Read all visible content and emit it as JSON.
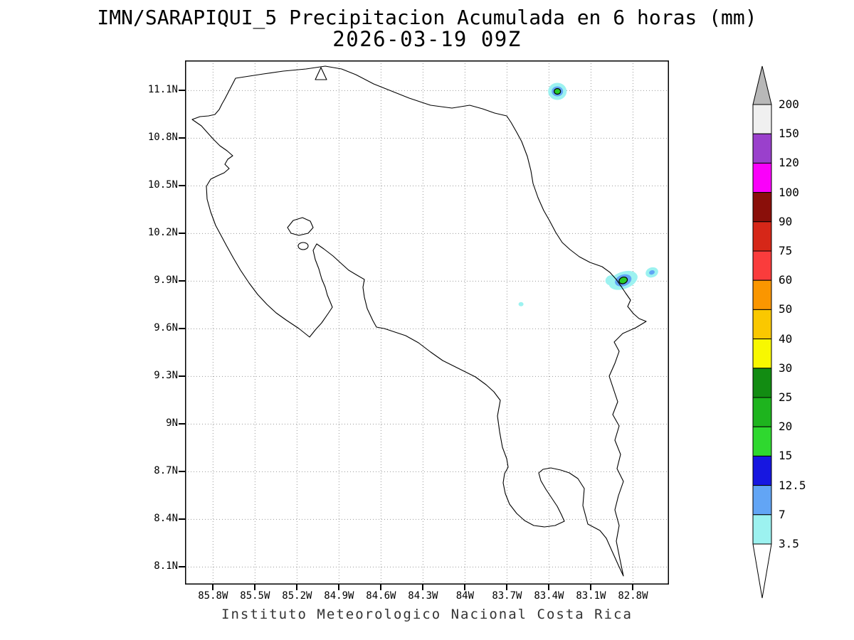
{
  "title": {
    "line1": "IMN/SARAPIQUI_5 Precipitacion Acumulada en 6 horas (mm)",
    "line2": "2026-03-19 09Z"
  },
  "footer": "Instituto Meteorologico Nacional Costa Rica",
  "map": {
    "y_ticks": [
      "11.1N",
      "10.8N",
      "10.5N",
      "10.2N",
      "9.9N",
      "9.6N",
      "9.3N",
      "9N",
      "8.7N",
      "8.4N",
      "8.1N"
    ],
    "x_ticks": [
      "85.8W",
      "85.5W",
      "85.2W",
      "84.9W",
      "84.6W",
      "84.3W",
      "84W",
      "83.7W",
      "83.4W",
      "83.1W",
      "82.8W"
    ]
  },
  "colorbar": {
    "labels_top_to_bottom": [
      "200",
      "150",
      "120",
      "100",
      "90",
      "75",
      "60",
      "50",
      "40",
      "30",
      "25",
      "20",
      "15",
      "12.5",
      "7",
      "3.5"
    ],
    "cell_colors_top_to_bottom": [
      "#f0f0f0",
      "#9a40cc",
      "#fa00fa",
      "#8a0f0a",
      "#d62718",
      "#fa3c3c",
      "#fa9600",
      "#fac800",
      "#f8f800",
      "#128c12",
      "#1eb41e",
      "#2fd82f",
      "#1717e0",
      "#62a5f5",
      "#9cf2f0"
    ],
    "top_arrow_color": "#b8b8b8",
    "bottom_arrow_color": "#ffffff"
  },
  "chart_data": {
    "type": "heatmap",
    "title": "IMN/SARAPIQUI_5 Precipitacion Acumulada en 6 horas (mm)",
    "subtitle": "2026-03-19 09Z",
    "units": "mm",
    "region": "Costa Rica",
    "lat_ticks": [
      "11.1N",
      "10.8N",
      "10.5N",
      "10.2N",
      "9.9N",
      "9.6N",
      "9.3N",
      "9N",
      "8.7N",
      "8.4N",
      "8.1N"
    ],
    "lon_ticks": [
      "85.8W",
      "85.5W",
      "85.2W",
      "84.9W",
      "84.6W",
      "84.3W",
      "84W",
      "83.7W",
      "83.4W",
      "83.1W",
      "82.8W"
    ],
    "scale_levels_mm": [
      3.5,
      7,
      12.5,
      15,
      20,
      25,
      30,
      40,
      50,
      60,
      75,
      90,
      100,
      120,
      150,
      200
    ],
    "scale_colors_low_to_high": [
      "#9cf2f0",
      "#62a5f5",
      "#1717e0",
      "#2fd82f",
      "#1eb41e",
      "#128c12",
      "#f8f800",
      "#fac800",
      "#fa9600",
      "#fa3c3c",
      "#d62718",
      "#8a0f0a",
      "#fa00fa",
      "#9a40cc",
      "#f0f0f0"
    ],
    "under_color": "#ffffff",
    "over_color": "#b8b8b8",
    "grid": true,
    "precip_cells": [
      {
        "lon_w": 83.34,
        "lat_n": 11.095,
        "max_mm": 20,
        "rotate": 0,
        "rings": [
          {
            "color": "#9cf2f0",
            "rx": 13,
            "ry": 12
          },
          {
            "color": "#62a5f5",
            "rx": 8,
            "ry": 7
          },
          {
            "color": "#28cc28",
            "rx": 4.5,
            "ry": 4,
            "stroke": "#000"
          }
        ]
      },
      {
        "lon_w": 82.87,
        "lat_n": 9.905,
        "max_mm": 25,
        "rotate": -20,
        "rings": [
          {
            "color": "#9cf2f0",
            "rx": 21,
            "ry": 12
          },
          {
            "color": "#9cf2f0",
            "rx": 8,
            "ry": 7,
            "dx": -16,
            "dy": -6
          },
          {
            "color": "#62a5f5",
            "rx": 12,
            "ry": 8
          },
          {
            "color": "#28cc28",
            "rx": 6,
            "ry": 4.5,
            "stroke": "#000"
          }
        ]
      },
      {
        "lon_w": 82.665,
        "lat_n": 9.955,
        "max_mm": 7,
        "rotate": -20,
        "rings": [
          {
            "color": "#9cf2f0",
            "rx": 9,
            "ry": 7
          },
          {
            "color": "#62a5f5",
            "rx": 4,
            "ry": 3
          }
        ]
      },
      {
        "lon_w": 83.6,
        "lat_n": 9.755,
        "max_mm": 3.5,
        "rotate": 0,
        "rings": [
          {
            "color": "#9cf2f0",
            "rx": 3.5,
            "ry": 3
          }
        ]
      }
    ]
  }
}
